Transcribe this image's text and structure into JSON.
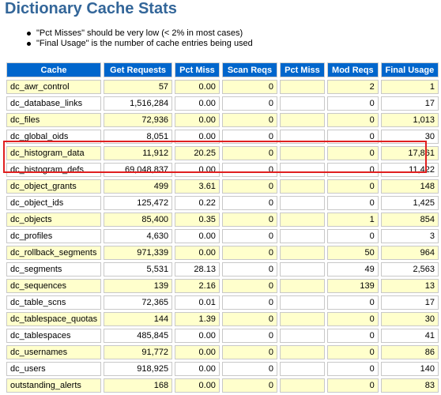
{
  "title": "Dictionary Cache Stats",
  "notes": [
    "\"Pct Misses\" should be very low (< 2% in most cases)",
    "\"Final Usage\" is the number of cache entries being used"
  ],
  "columns": [
    "Cache",
    "Get Requests",
    "Pct Miss",
    "Scan Reqs",
    "Pct Miss",
    "Mod Reqs",
    "Final Usage"
  ],
  "rows": [
    {
      "cache": "dc_awr_control",
      "get": "57",
      "pmiss": "0.00",
      "scan": "0",
      "spmiss": "",
      "mod": "2",
      "final": "1"
    },
    {
      "cache": "dc_database_links",
      "get": "1,516,284",
      "pmiss": "0.00",
      "scan": "0",
      "spmiss": "",
      "mod": "0",
      "final": "17"
    },
    {
      "cache": "dc_files",
      "get": "72,936",
      "pmiss": "0.00",
      "scan": "0",
      "spmiss": "",
      "mod": "0",
      "final": "1,013"
    },
    {
      "cache": "dc_global_oids",
      "get": "8,051",
      "pmiss": "0.00",
      "scan": "0",
      "spmiss": "",
      "mod": "0",
      "final": "30"
    },
    {
      "cache": "dc_histogram_data",
      "get": "11,912",
      "pmiss": "20.25",
      "scan": "0",
      "spmiss": "",
      "mod": "0",
      "final": "17,861"
    },
    {
      "cache": "dc_histogram_defs",
      "get": "69,048,837",
      "pmiss": "0.00",
      "scan": "0",
      "spmiss": "",
      "mod": "0",
      "final": "11,422"
    },
    {
      "cache": "dc_object_grants",
      "get": "499",
      "pmiss": "3.61",
      "scan": "0",
      "spmiss": "",
      "mod": "0",
      "final": "148"
    },
    {
      "cache": "dc_object_ids",
      "get": "125,472",
      "pmiss": "0.22",
      "scan": "0",
      "spmiss": "",
      "mod": "0",
      "final": "1,425"
    },
    {
      "cache": "dc_objects",
      "get": "85,400",
      "pmiss": "0.35",
      "scan": "0",
      "spmiss": "",
      "mod": "1",
      "final": "854"
    },
    {
      "cache": "dc_profiles",
      "get": "4,630",
      "pmiss": "0.00",
      "scan": "0",
      "spmiss": "",
      "mod": "0",
      "final": "3"
    },
    {
      "cache": "dc_rollback_segments",
      "get": "971,339",
      "pmiss": "0.00",
      "scan": "0",
      "spmiss": "",
      "mod": "50",
      "final": "964"
    },
    {
      "cache": "dc_segments",
      "get": "5,531",
      "pmiss": "28.13",
      "scan": "0",
      "spmiss": "",
      "mod": "49",
      "final": "2,563"
    },
    {
      "cache": "dc_sequences",
      "get": "139",
      "pmiss": "2.16",
      "scan": "0",
      "spmiss": "",
      "mod": "139",
      "final": "13"
    },
    {
      "cache": "dc_table_scns",
      "get": "72,365",
      "pmiss": "0.01",
      "scan": "0",
      "spmiss": "",
      "mod": "0",
      "final": "17"
    },
    {
      "cache": "dc_tablespace_quotas",
      "get": "144",
      "pmiss": "1.39",
      "scan": "0",
      "spmiss": "",
      "mod": "0",
      "final": "30"
    },
    {
      "cache": "dc_tablespaces",
      "get": "485,845",
      "pmiss": "0.00",
      "scan": "0",
      "spmiss": "",
      "mod": "0",
      "final": "41"
    },
    {
      "cache": "dc_usernames",
      "get": "91,772",
      "pmiss": "0.00",
      "scan": "0",
      "spmiss": "",
      "mod": "0",
      "final": "86"
    },
    {
      "cache": "dc_users",
      "get": "918,925",
      "pmiss": "0.00",
      "scan": "0",
      "spmiss": "",
      "mod": "0",
      "final": "140"
    },
    {
      "cache": "outstanding_alerts",
      "get": "168",
      "pmiss": "0.00",
      "scan": "0",
      "spmiss": "",
      "mod": "0",
      "final": "83"
    }
  ],
  "colors": {
    "title": "#336699",
    "header_bg": "#0066cc",
    "alt_row_bg": "#ffffcc",
    "highlight_border": "#e02020"
  }
}
